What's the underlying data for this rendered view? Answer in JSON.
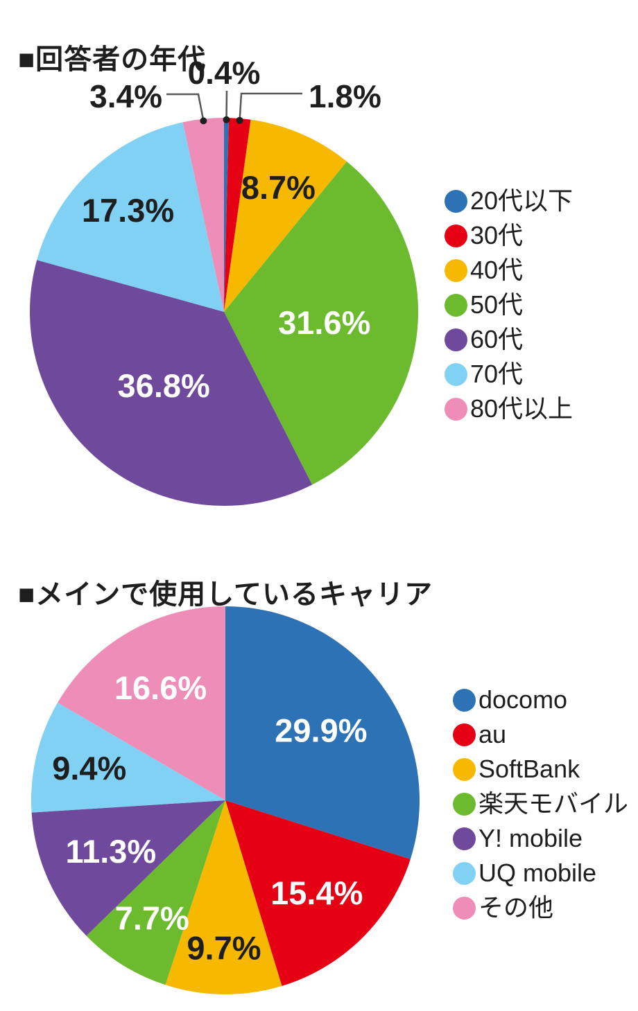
{
  "page_background": "#ffffff",
  "text_color": "#1e1e1e",
  "leader_line_color": "#595757",
  "chart_data": [
    {
      "type": "pie",
      "title": "■回答者の年代",
      "categories": [
        "20代以下",
        "30代",
        "40代",
        "50代",
        "60代",
        "70代",
        "80代以上"
      ],
      "values": [
        0.4,
        1.8,
        8.7,
        31.6,
        36.8,
        17.3,
        3.4
      ],
      "labels": [
        "0.4%",
        "1.8%",
        "8.7%",
        "31.6%",
        "36.8%",
        "17.3%",
        "3.4%"
      ],
      "colors": [
        "#2e72b6",
        "#e60014",
        "#f6b900",
        "#6cbb2f",
        "#6f4a9c",
        "#80d1f3",
        "#ef8db9"
      ],
      "start_angle": 0,
      "direction": "clockwise",
      "legend_position": "right"
    },
    {
      "type": "pie",
      "title": "■メインで使用しているキャリア",
      "categories": [
        "docomo",
        "au",
        "SoftBank",
        "楽天モバイル",
        "Y! mobile",
        "UQ mobile",
        "その他"
      ],
      "values": [
        29.9,
        15.4,
        9.7,
        7.7,
        11.3,
        9.4,
        16.6
      ],
      "labels": [
        "29.9%",
        "15.4%",
        "9.7%",
        "7.7%",
        "11.3%",
        "9.4%",
        "16.6%"
      ],
      "colors": [
        "#2e72b6",
        "#e60014",
        "#f6b900",
        "#6cbb2f",
        "#6f4a9c",
        "#80d1f3",
        "#ef8db9"
      ],
      "start_angle": 0,
      "direction": "clockwise",
      "legend_position": "right"
    }
  ]
}
